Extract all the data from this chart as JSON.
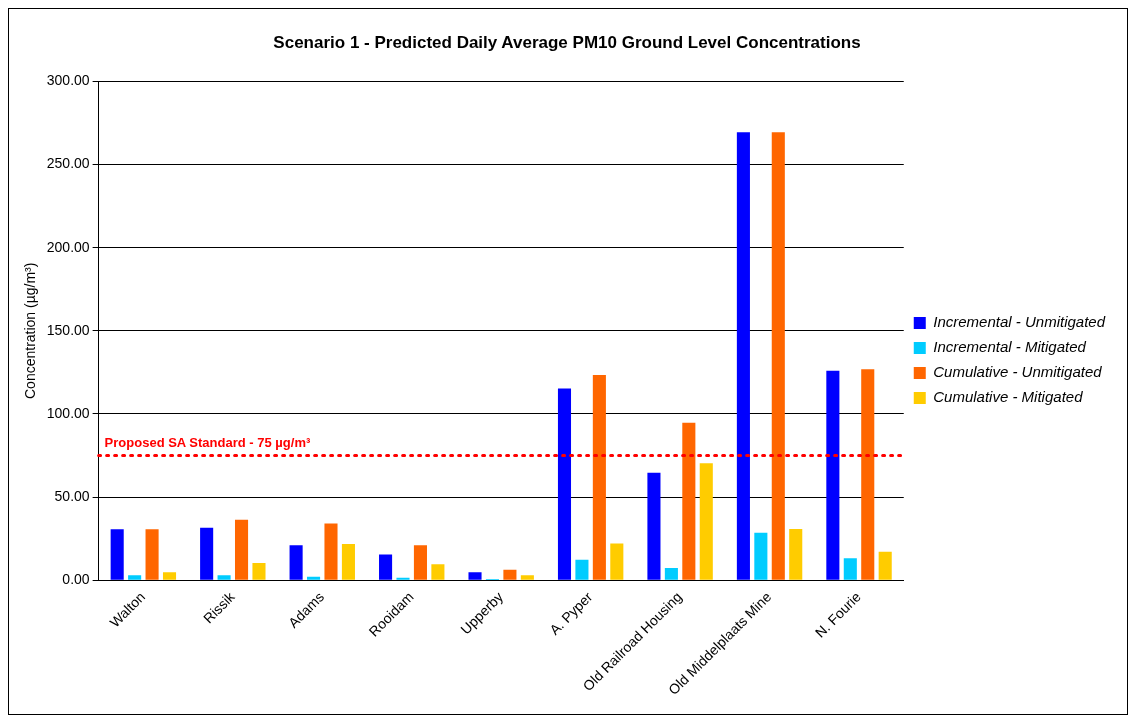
{
  "chart_data": {
    "type": "bar",
    "title": "Scenario 1 - Predicted Daily Average PM10 Ground Level Concentrations",
    "ylabel": "Concentration (µg/m³)",
    "categories": [
      "Walton",
      "Rissik",
      "Adams",
      "Rooidam",
      "Upperby",
      "A. Pyper",
      "Old Railroad Housing",
      "Old Middelplaats Mine",
      "N. Fourie"
    ],
    "series": [
      {
        "name": "Incremental - Unmitigated",
        "color": "#0000ff",
        "values": [
          30.6,
          31.5,
          21.0,
          15.4,
          4.7,
          115.3,
          64.6,
          269.4,
          125.9
        ]
      },
      {
        "name": "Incremental - Mitigated",
        "color": "#00ccff",
        "values": [
          3.0,
          3.0,
          2.1,
          1.4,
          0.7,
          12.3,
          7.4,
          28.5,
          13.2
        ]
      },
      {
        "name": "Cumulative - Unmitigated",
        "color": "#ff6600",
        "values": [
          30.6,
          36.4,
          34.1,
          21.0,
          6.3,
          123.4,
          94.7,
          269.4,
          126.9
        ]
      },
      {
        "name": "Cumulative - Mitigated",
        "color": "#ffcc00",
        "values": [
          4.7,
          10.3,
          21.7,
          9.6,
          3.0,
          22.0,
          70.4,
          30.8,
          17.1
        ]
      }
    ],
    "ylim": [
      0,
      300
    ],
    "yticks": [
      {
        "value": 0,
        "label": "0.00"
      },
      {
        "value": 50,
        "label": "50.00"
      },
      {
        "value": 100,
        "label": "100.00"
      },
      {
        "value": 150,
        "label": "150.00"
      },
      {
        "value": 200,
        "label": "200.00"
      },
      {
        "value": 250,
        "label": "250.00"
      },
      {
        "value": 300,
        "label": "300.00"
      }
    ],
    "ref_lines": [
      {
        "axis": "y",
        "value": 75,
        "label": "Proposed SA Standard - 75 µg/m³",
        "color": "#ff0000",
        "line_style": "dotted"
      }
    ],
    "grid": "y",
    "legend": "right"
  }
}
